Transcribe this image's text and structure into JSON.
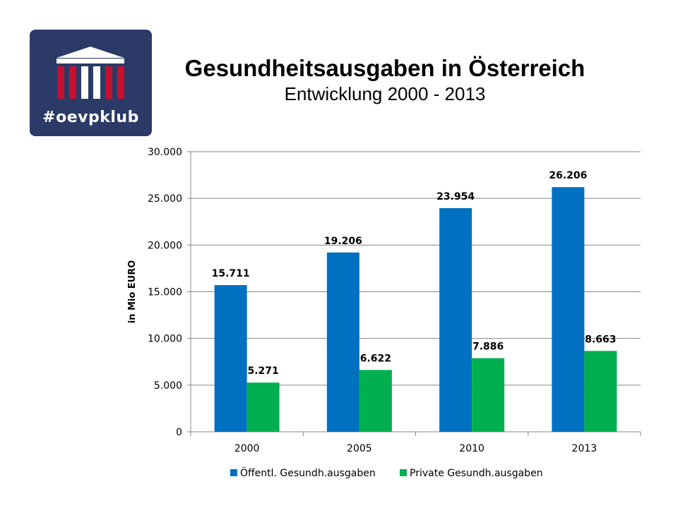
{
  "logo": {
    "text": "#oevpklub",
    "colors": {
      "background": "#2b3a67",
      "red": "#c8102e",
      "white": "#ffffff"
    }
  },
  "title": "Gesundheitsausgaben in Österreich",
  "subtitle": "Entwicklung 2000 - 2013",
  "chart_data": {
    "type": "bar",
    "title": "Gesundheitsausgaben in Österreich",
    "subtitle": "Entwicklung 2000 - 2013",
    "ylabel": "in Mio EURO",
    "xlabel": "",
    "categories": [
      "2000",
      "2005",
      "2010",
      "2013"
    ],
    "ylim": [
      0,
      30000
    ],
    "yticks": [
      0,
      5000,
      10000,
      15000,
      20000,
      25000,
      30000
    ],
    "ytick_labels": [
      "0",
      "5.000",
      "10.000",
      "15.000",
      "20.000",
      "25.000",
      "30.000"
    ],
    "grid": true,
    "legend": "bottom",
    "series": [
      {
        "name": "Öffentl. Gesundh.ausgaben",
        "color": "#0070c0",
        "values": [
          15711,
          19206,
          23954,
          26206
        ],
        "labels": [
          "15.711",
          "19.206",
          "23.954",
          "26.206"
        ]
      },
      {
        "name": "Private Gesundh.ausgaben",
        "color": "#00b050",
        "values": [
          5271,
          6622,
          7886,
          8663
        ],
        "labels": [
          "5.271",
          "6.622",
          "7.886",
          "8.663"
        ]
      }
    ]
  }
}
